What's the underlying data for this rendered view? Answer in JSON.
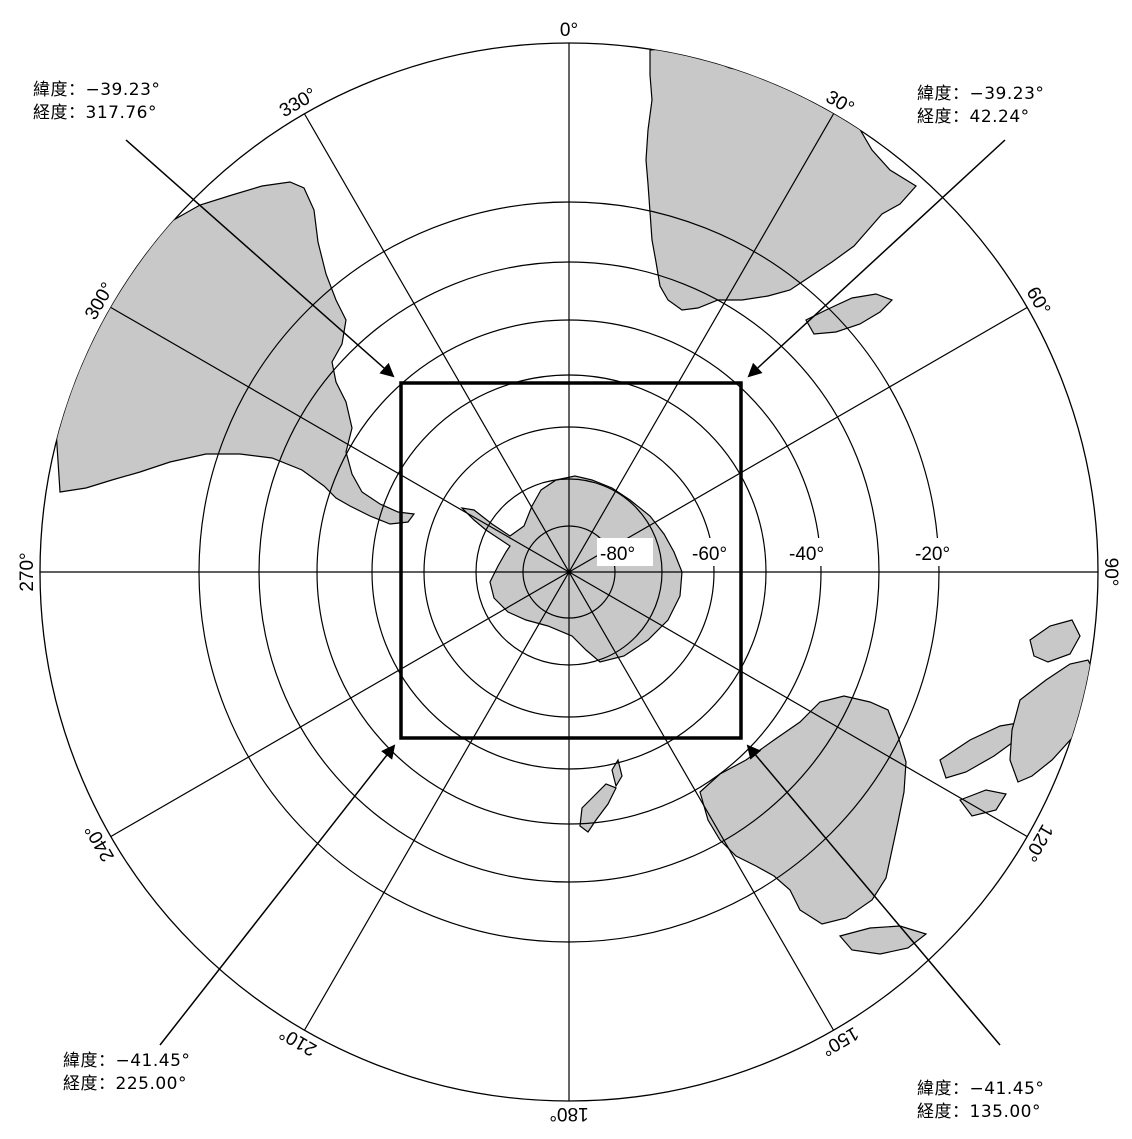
{
  "map": {
    "projection": "south-polar stereographic",
    "center_latitude": -90,
    "land_color": "#c8c8c8",
    "latitude_labels": [
      "-80°",
      "-60°",
      "-40°",
      "-20°"
    ],
    "longitude_labels": [
      {
        "lon": 0,
        "text": "0°"
      },
      {
        "lon": 30,
        "text": "30°"
      },
      {
        "lon": 60,
        "text": "60°"
      },
      {
        "lon": 90,
        "text": "90°"
      },
      {
        "lon": 120,
        "text": "120°"
      },
      {
        "lon": 150,
        "text": "150°"
      },
      {
        "lon": 180,
        "text": "180°"
      },
      {
        "lon": 210,
        "text": "210°"
      },
      {
        "lon": 240,
        "text": "240°"
      },
      {
        "lon": 270,
        "text": "270°"
      },
      {
        "lon": 300,
        "text": "300°"
      },
      {
        "lon": 330,
        "text": "330°"
      }
    ],
    "region_corners": [
      {
        "id": "top-left",
        "lat_line": "緯度：−39.23°",
        "lon_line": "経度：317.76°"
      },
      {
        "id": "top-right",
        "lat_line": "緯度：−39.23°",
        "lon_line": "経度：42.24°"
      },
      {
        "id": "bottom-left",
        "lat_line": "緯度：−41.45°",
        "lon_line": "経度：225.00°"
      },
      {
        "id": "bottom-right",
        "lat_line": "緯度：−41.45°",
        "lon_line": "経度：135.00°"
      }
    ]
  }
}
